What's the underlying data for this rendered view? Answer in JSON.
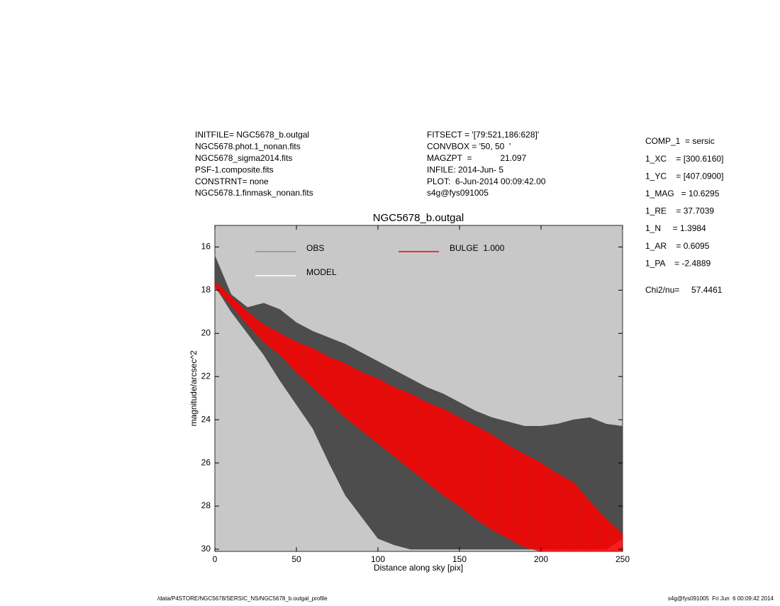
{
  "header_left": [
    "INITFILE= NGC5678_b.outgal",
    "NGC5678.phot.1_nonan.fits",
    "NGC5678_sigma2014.fits",
    "PSF-1.composite.fits",
    "CONSTRNT= none",
    "NGC5678.1.finmask_nonan.fits"
  ],
  "header_center": [
    "FITSECT = '[79:521,186:628]'",
    "CONVBOX = '50, 50  '",
    "MAGZPT  =            21.097",
    "INFILE: 2014-Jun- 5",
    "PLOT:  6-Jun-2014 00:09:42.00",
    "s4g@fys091005"
  ],
  "params": [
    "COMP_1  = sersic",
    "1_XC    = [300.6160]",
    "1_YC    = [407.0900]",
    "1_MAG   = 10.6295",
    "1_RE    = 37.7039",
    "1_N     = 1.3984",
    "1_AR    = 0.6095",
    "1_PA    = -2.4889"
  ],
  "chi2": "Chi2/nu=     57.4461",
  "footer_left": "/data/P4STORE/NGC5678/SERSIC_NS/NGC5678_b.outgal_profile",
  "footer_right": "s4g@fys091005  Fri Jun  6 00:09:42 2014",
  "chart_data": {
    "type": "band",
    "title": "NGC5678_b.outgal",
    "x_label": "Distance along sky [pix]",
    "y_label": "magnitude/arcsec^2",
    "xlim": [
      0,
      250
    ],
    "ylim": [
      30.1,
      15
    ],
    "xticks": [
      0,
      50,
      100,
      150,
      200,
      250
    ],
    "yticks": [
      16,
      18,
      20,
      22,
      24,
      26,
      28,
      30
    ],
    "background": "#c8c8c8",
    "x": [
      0,
      10,
      20,
      30,
      40,
      50,
      60,
      70,
      80,
      90,
      100,
      110,
      120,
      130,
      140,
      150,
      160,
      170,
      180,
      190,
      200,
      210,
      220,
      230,
      240,
      250
    ],
    "series": [
      {
        "name": "OBS",
        "legend_color": "#8c8c8c",
        "color": "#4d4d4d",
        "values": [
          16.4,
          18.2,
          18.8,
          18.6,
          18.9,
          19.5,
          19.9,
          20.2,
          20.5,
          20.9,
          21.3,
          21.7,
          22.1,
          22.5,
          22.8,
          23.2,
          23.6,
          23.9,
          24.1,
          24.3,
          24.3,
          24.2,
          24.0,
          23.9,
          24.2,
          24.3
        ],
        "lower": [
          17.8,
          19.0,
          20.0,
          21.0,
          22.2,
          23.3,
          24.4,
          26.0,
          27.5,
          28.5,
          29.5,
          29.8,
          30.0,
          30.0,
          30.0,
          30.0,
          30.0,
          30.0,
          30.0,
          30.0,
          30.0,
          30.0,
          30.0,
          30.0,
          30.0,
          29.5
        ]
      },
      {
        "name": "MODEL",
        "legend_color": "#ffffff",
        "color": "#ffffff",
        "values": [
          null,
          null,
          null,
          null,
          null,
          null,
          null,
          null,
          null,
          null,
          null,
          null,
          null,
          null,
          null,
          null,
          null,
          null,
          null,
          null,
          null,
          null,
          null,
          null,
          null,
          null
        ],
        "lower": [
          null,
          null,
          null,
          null,
          null,
          null,
          null,
          null,
          null,
          null,
          null,
          null,
          null,
          null,
          null,
          null,
          null,
          null,
          null,
          null,
          null,
          null,
          null,
          null,
          null,
          null
        ]
      },
      {
        "name": "BULGE  1.000",
        "legend_color": "#ff0000",
        "color": "#ff0000",
        "values": [
          17.6,
          18.3,
          19.0,
          19.6,
          20.0,
          20.4,
          20.7,
          21.1,
          21.4,
          21.8,
          22.1,
          22.5,
          22.8,
          23.2,
          23.5,
          23.9,
          24.3,
          24.7,
          25.2,
          25.6,
          26.0,
          26.5,
          26.9,
          27.8,
          28.6,
          29.3
        ],
        "lower": [
          17.9,
          18.7,
          19.6,
          20.4,
          21.0,
          21.8,
          22.5,
          23.2,
          23.9,
          24.5,
          25.1,
          25.7,
          26.3,
          26.9,
          27.5,
          28.0,
          28.6,
          29.1,
          29.5,
          29.9,
          30.1,
          30.1,
          30.1,
          30.1,
          30.1,
          30.1
        ]
      }
    ]
  }
}
